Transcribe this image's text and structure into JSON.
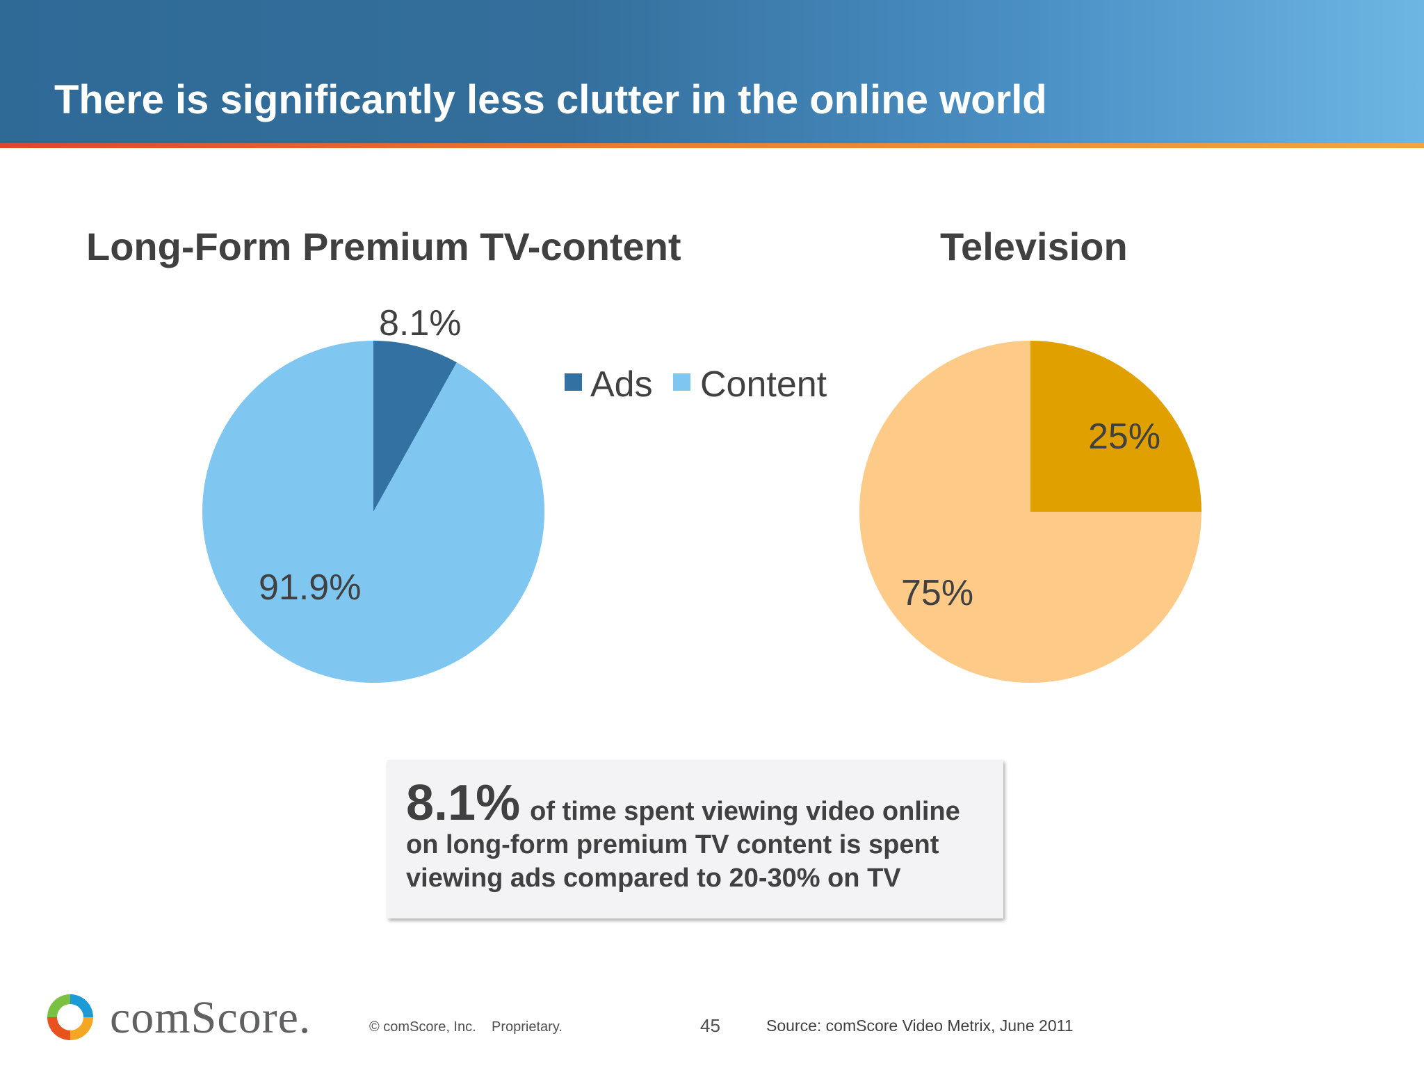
{
  "slide": {
    "title": "There is significantly less clutter in the online world"
  },
  "chart_data": [
    {
      "type": "pie",
      "title": "Long-Form Premium TV-content",
      "categories": [
        "Ads",
        "Content"
      ],
      "values": [
        8.1,
        91.9
      ],
      "data_labels": [
        "8.1%",
        "91.9%"
      ],
      "colors": [
        "#3371a3",
        "#7fc6f1"
      ],
      "legend": [
        "Ads",
        "Content"
      ],
      "legend_position": "right"
    },
    {
      "type": "pie",
      "title": "Television",
      "categories": [
        "Ads",
        "Content"
      ],
      "values": [
        25,
        75
      ],
      "data_labels": [
        "25%",
        "75%"
      ],
      "colors": [
        "#e0a100",
        "#fdca88"
      ]
    }
  ],
  "callout": {
    "highlight": "8.1%",
    "text_line1": "of time spent viewing video online",
    "text_line2": "on long-form premium TV content is spent",
    "text_line3": "viewing ads compared to 20-30% on TV"
  },
  "footer": {
    "brand": "comScore.",
    "copyright": "© comScore, Inc.",
    "proprietary": "Proprietary.",
    "page_number": "45",
    "source": "Source: comScore Video Metrix, June 2011",
    "logo_colors": [
      "#1a9ad6",
      "#f5a623",
      "#e8521f",
      "#7ac143"
    ]
  }
}
